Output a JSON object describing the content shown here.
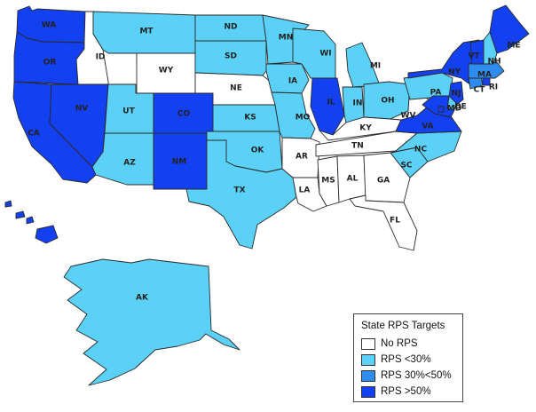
{
  "colors": {
    "none": "#ffffff",
    "low": "#5bd1f7",
    "mid": "#2e8cf0",
    "high": "#1340f0",
    "border": "#2a2a2a"
  },
  "legend": {
    "title": "State RPS Targets",
    "items": [
      {
        "key": "none",
        "label": "No RPS"
      },
      {
        "key": "low",
        "label": "RPS <30%"
      },
      {
        "key": "mid",
        "label": "RPS 30%<50%"
      },
      {
        "key": "high",
        "label": "RPS >50%"
      }
    ]
  },
  "states": [
    {
      "abbr": "WA",
      "category": "high",
      "label": "WA"
    },
    {
      "abbr": "OR",
      "category": "high",
      "label": "OR"
    },
    {
      "abbr": "CA",
      "category": "high",
      "label": "CA"
    },
    {
      "abbr": "NV",
      "category": "high",
      "label": "NV"
    },
    {
      "abbr": "ID",
      "category": "none",
      "label": "ID"
    },
    {
      "abbr": "MT",
      "category": "low",
      "label": "MT"
    },
    {
      "abbr": "WY",
      "category": "none",
      "label": "WY"
    },
    {
      "abbr": "UT",
      "category": "low",
      "label": "UT"
    },
    {
      "abbr": "AZ",
      "category": "low",
      "label": "AZ"
    },
    {
      "abbr": "CO",
      "category": "high",
      "label": "CO"
    },
    {
      "abbr": "NM",
      "category": "high",
      "label": "NM"
    },
    {
      "abbr": "ND",
      "category": "low",
      "label": "ND"
    },
    {
      "abbr": "SD",
      "category": "low",
      "label": "SD"
    },
    {
      "abbr": "NE",
      "category": "none",
      "label": "NE"
    },
    {
      "abbr": "KS",
      "category": "low",
      "label": "KS"
    },
    {
      "abbr": "OK",
      "category": "low",
      "label": "OK"
    },
    {
      "abbr": "TX",
      "category": "low",
      "label": "TX"
    },
    {
      "abbr": "MN",
      "category": "low",
      "label": "MN"
    },
    {
      "abbr": "IA",
      "category": "low",
      "label": "IA"
    },
    {
      "abbr": "MO",
      "category": "low",
      "label": "MO"
    },
    {
      "abbr": "AR",
      "category": "none",
      "label": "AR"
    },
    {
      "abbr": "LA",
      "category": "none",
      "label": "LA"
    },
    {
      "abbr": "WI",
      "category": "low",
      "label": "WI"
    },
    {
      "abbr": "IL",
      "category": "high",
      "label": "IL"
    },
    {
      "abbr": "MI",
      "category": "low",
      "label": "MI"
    },
    {
      "abbr": "IN",
      "category": "low",
      "label": "IN"
    },
    {
      "abbr": "OH",
      "category": "low",
      "label": "OH"
    },
    {
      "abbr": "KY",
      "category": "none",
      "label": "KY"
    },
    {
      "abbr": "TN",
      "category": "none",
      "label": "TN"
    },
    {
      "abbr": "MS",
      "category": "none",
      "label": "MS"
    },
    {
      "abbr": "AL",
      "category": "none",
      "label": "AL"
    },
    {
      "abbr": "GA",
      "category": "none",
      "label": "GA"
    },
    {
      "abbr": "FL",
      "category": "none",
      "label": "FL"
    },
    {
      "abbr": "SC",
      "category": "low",
      "label": "SC"
    },
    {
      "abbr": "NC",
      "category": "low",
      "label": "NC"
    },
    {
      "abbr": "VA",
      "category": "high",
      "label": "VA"
    },
    {
      "abbr": "WV",
      "category": "none",
      "label": "WV"
    },
    {
      "abbr": "PA",
      "category": "low",
      "label": "PA"
    },
    {
      "abbr": "NY",
      "category": "high",
      "label": "NY"
    },
    {
      "abbr": "NJ",
      "category": "high",
      "label": "NJ"
    },
    {
      "abbr": "DE",
      "category": "low",
      "label": "DE"
    },
    {
      "abbr": "MD",
      "category": "high",
      "label": "MD"
    },
    {
      "abbr": "DC",
      "category": "high",
      "label": ""
    },
    {
      "abbr": "CT",
      "category": "mid",
      "label": "CT"
    },
    {
      "abbr": "RI",
      "category": "high",
      "label": "RI"
    },
    {
      "abbr": "MA",
      "category": "mid",
      "label": "MA"
    },
    {
      "abbr": "VT",
      "category": "high",
      "label": "VT"
    },
    {
      "abbr": "NH",
      "category": "low",
      "label": "NH"
    },
    {
      "abbr": "ME",
      "category": "high",
      "label": "ME"
    },
    {
      "abbr": "AK",
      "category": "low",
      "label": "AK"
    },
    {
      "abbr": "HI",
      "category": "high",
      "label": ""
    }
  ]
}
